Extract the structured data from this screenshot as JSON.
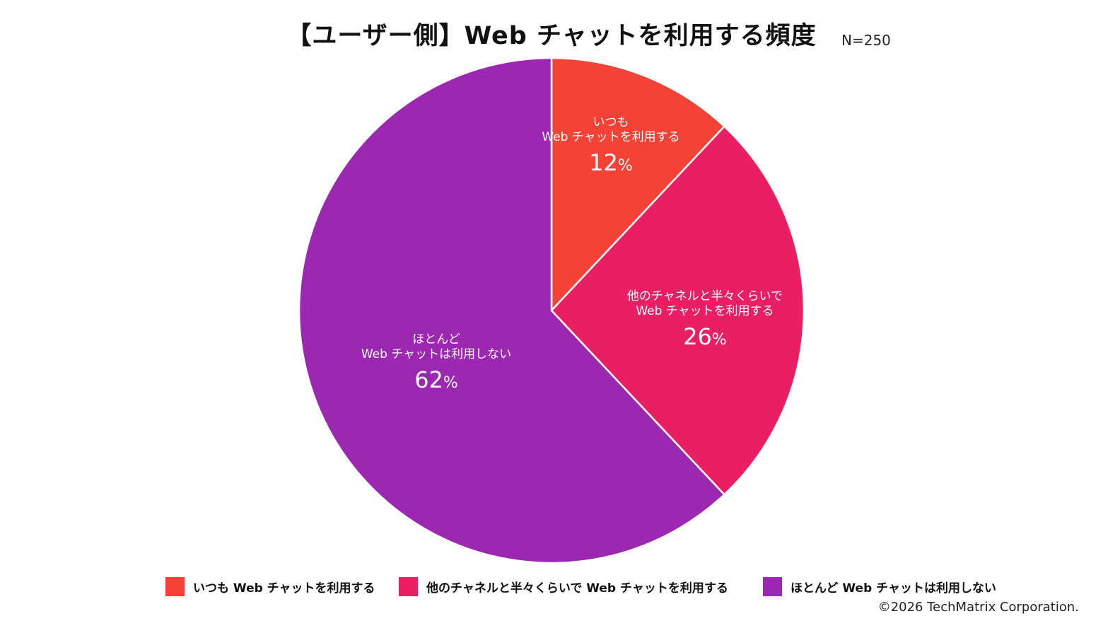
{
  "title": "【ユーザー側】Web チャットを利用する頻度",
  "sample_size": "N=250",
  "copyright": "©2026 TechMatrix Corporation.",
  "chart_data": {
    "type": "pie",
    "title": "【ユーザー側】Web チャットを利用する頻度",
    "unit": "%",
    "start_angle_deg": 0,
    "direction": "clockwise",
    "slices": [
      {
        "label": "いつも Web チャットを利用する",
        "label_lines": [
          "いつも",
          "Web チャットを利用する"
        ],
        "value": 12,
        "value_label": "12",
        "color": "#F44336"
      },
      {
        "label": "他のチャネルと半々くらいで Web チャットを利用する",
        "label_lines": [
          "他のチャネルと半々くらいで",
          "Web チャットを利用する"
        ],
        "value": 26,
        "value_label": "26",
        "color": "#E91E63"
      },
      {
        "label": "ほとんど Web チャットは利用しない",
        "label_lines": [
          "ほとんど",
          "Web チャットは利用しない"
        ],
        "value": 62,
        "value_label": "62",
        "color": "#9C27B0"
      }
    ],
    "legend": {
      "placement": "bottom",
      "entries": [
        "いつも Web チャットを利用する",
        "他のチャネルと半々くらいで Web チャットを利用する",
        "ほとんど Web チャットは利用しない"
      ]
    }
  }
}
